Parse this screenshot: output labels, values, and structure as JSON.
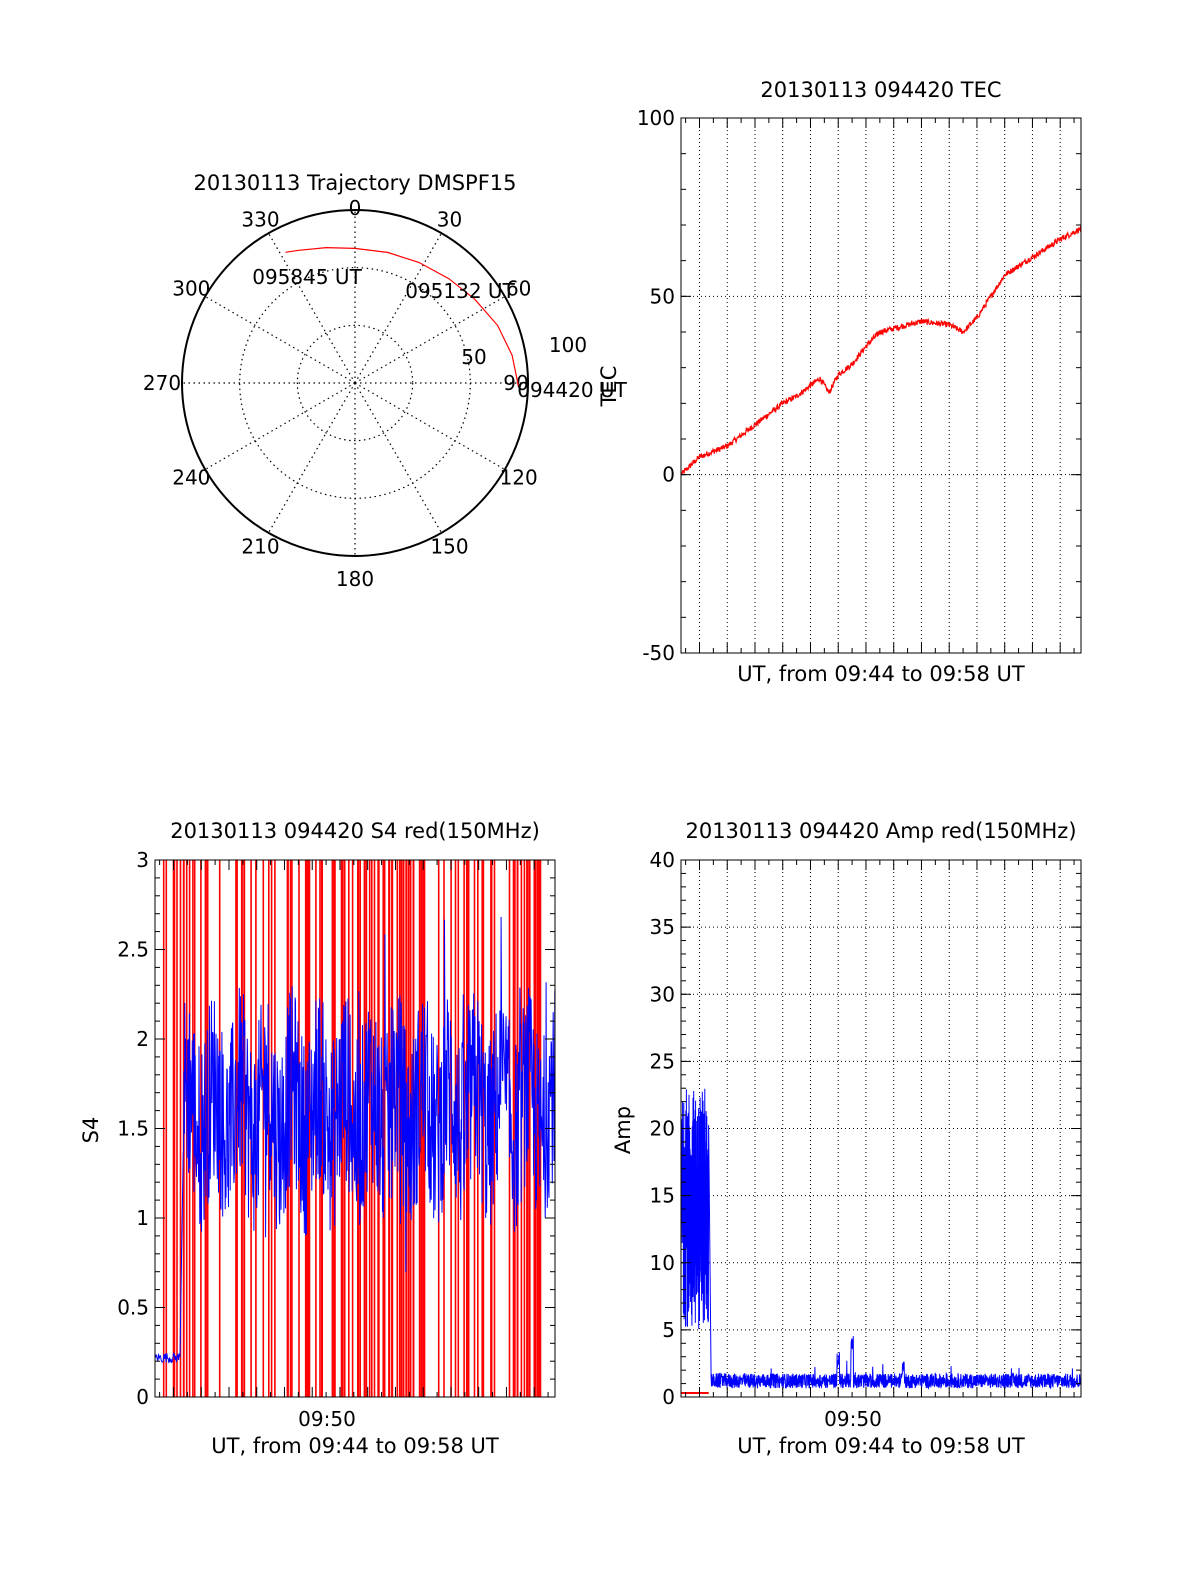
{
  "colors": {
    "red": "#ff0000",
    "blue": "#0000ff",
    "axis": "#000000",
    "grid": "#000000"
  },
  "chart_data": [
    {
      "id": "trajectory",
      "type": "polar",
      "title": "20130113 Trajectory DMSPF15",
      "angle_ticks": [
        "0",
        "30",
        "60",
        "90",
        "120",
        "150",
        "180",
        "210",
        "240",
        "270",
        "300",
        "330"
      ],
      "radial_ticks": [
        "50",
        "100"
      ],
      "rmax": 90,
      "grid": true,
      "series": [
        {
          "color": "red",
          "points": [
            {
              "az": 91,
              "r": 85
            },
            {
              "az": 80,
              "r": 83
            },
            {
              "az": 68,
              "r": 80
            },
            {
              "az": 55,
              "r": 76
            },
            {
              "az": 42,
              "r": 73
            },
            {
              "az": 28,
              "r": 71
            },
            {
              "az": 14,
              "r": 70
            },
            {
              "az": 0,
              "r": 70
            },
            {
              "az": -12,
              "r": 72
            },
            {
              "az": -23,
              "r": 75
            },
            {
              "az": -28,
              "r": 77
            }
          ]
        }
      ],
      "annotations": [
        {
          "text": "095845 UT",
          "az": -20,
          "r": 75
        },
        {
          "text": "095132 UT",
          "az": 58,
          "r": 68
        },
        {
          "text": "094420 UT",
          "az": 95,
          "r": 84
        }
      ]
    },
    {
      "id": "tec",
      "type": "line",
      "title": "20130113 094420 TEC",
      "xlabel": "UT, from 09:44 to 09:58 UT",
      "ylabel": "TEC",
      "xlim": [
        "09:44:20",
        "09:58:45"
      ],
      "ylim": [
        -50,
        100
      ],
      "yticks": [
        "-50",
        "0",
        "50",
        "100"
      ],
      "grid": true,
      "series": [
        {
          "color": "red",
          "x": [
            "09:44:20",
            "09:45:00",
            "09:46:00",
            "09:47:00",
            "09:48:00",
            "09:48:30",
            "09:49:00",
            "09:49:20",
            "09:49:40",
            "09:50:00",
            "09:50:30",
            "09:51:00",
            "09:51:30",
            "09:52:00",
            "09:53:00",
            "09:54:00",
            "09:54:30",
            "09:55:00",
            "09:55:30",
            "09:56:00",
            "09:57:00",
            "09:58:00",
            "09:58:45"
          ],
          "y": [
            0,
            5,
            8,
            14,
            20,
            22,
            25,
            27,
            23,
            28,
            31,
            36,
            40,
            41,
            43,
            42,
            40,
            44,
            50,
            56,
            61,
            66,
            69
          ]
        }
      ]
    },
    {
      "id": "s4",
      "type": "line",
      "title": "20130113 094420 S4 red(150MHz)",
      "xlabel": "UT, from 09:44 to 09:58 UT",
      "xtick_labels": [
        "09:50"
      ],
      "ylabel": "S4",
      "xlim": [
        "09:44:20",
        "09:58:45"
      ],
      "ylim": [
        0,
        3
      ],
      "yticks": [
        "0",
        "0.5",
        "1",
        "1.5",
        "2",
        "2.5",
        "3"
      ],
      "grid": false,
      "series": [
        {
          "color": "red",
          "style": "vertical-spikes",
          "y_range": [
            0,
            3
          ]
        },
        {
          "color": "blue",
          "style": "noisy",
          "x": [
            "09:44:20",
            "09:45:15",
            "09:45:20",
            "09:58:45"
          ],
          "y_early": 0.22,
          "y_center": 1.6
        }
      ]
    },
    {
      "id": "amp",
      "type": "line",
      "title": "20130113 094420 Amp red(150MHz)",
      "xlabel": "UT, from 09:44 to 09:58 UT",
      "xtick_labels": [
        "09:50"
      ],
      "ylabel": "Amp",
      "xlim": [
        "09:44:20",
        "09:58:45"
      ],
      "ylim": [
        0,
        40
      ],
      "yticks": [
        "0",
        "5",
        "10",
        "15",
        "20",
        "25",
        "30",
        "35",
        "40"
      ],
      "grid": true,
      "series": [
        {
          "color": "red",
          "style": "flat",
          "x": [
            "09:44:20",
            "09:45:20"
          ],
          "y": [
            0.3,
            0.3
          ]
        },
        {
          "color": "blue",
          "style": "noisy",
          "x": [
            "09:44:20",
            "09:45:20",
            "09:45:25",
            "09:58:45"
          ],
          "y_early_range": [
            5,
            25
          ],
          "y_late": 1.2,
          "spikes": [
            {
              "x": "09:50:00",
              "y": 3.5
            },
            {
              "x": "09:50:30",
              "y": 4.8
            },
            {
              "x": "09:52:20",
              "y": 2.7
            }
          ]
        }
      ]
    }
  ]
}
